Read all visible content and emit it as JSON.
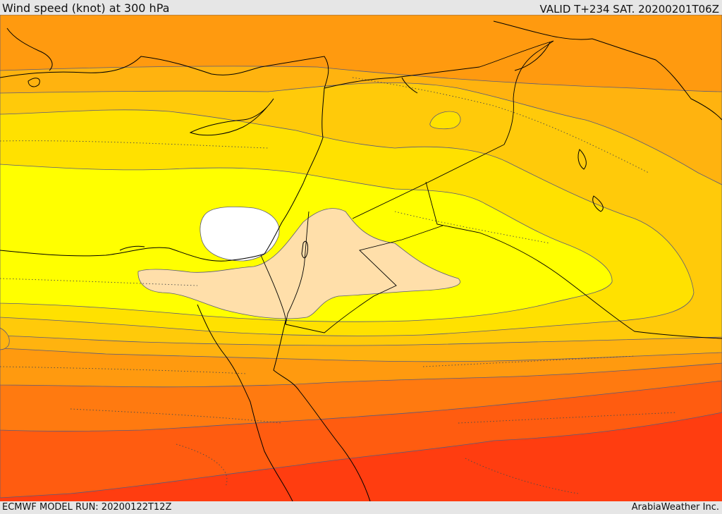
{
  "header": {
    "title": "Wind speed (knot) at 300 hPa",
    "valid_time": "VALID T+234 SAT. 20200201T06Z"
  },
  "footer": {
    "model_run": "ECMWF MODEL RUN: 20200122T12Z",
    "credit": "ArabiaWeather Inc."
  },
  "map": {
    "variable": "wind speed",
    "level": "300 hPa",
    "unit": "knot",
    "colors": {
      "band_deep_red": "#ff3d10",
      "band_red_orange": "#ff5c10",
      "band_orange": "#ff7a10",
      "band_orange_light": "#ff9a0f",
      "band_amber": "#ffb30f",
      "band_gold": "#ffca0a",
      "band_yellow": "#ffe100",
      "band_bright_yellow": "#ffff00",
      "band_pale": "#ffdfaa",
      "band_min": "#ffffff",
      "contour": "#5a5a7a",
      "coastline": "#000000"
    }
  }
}
